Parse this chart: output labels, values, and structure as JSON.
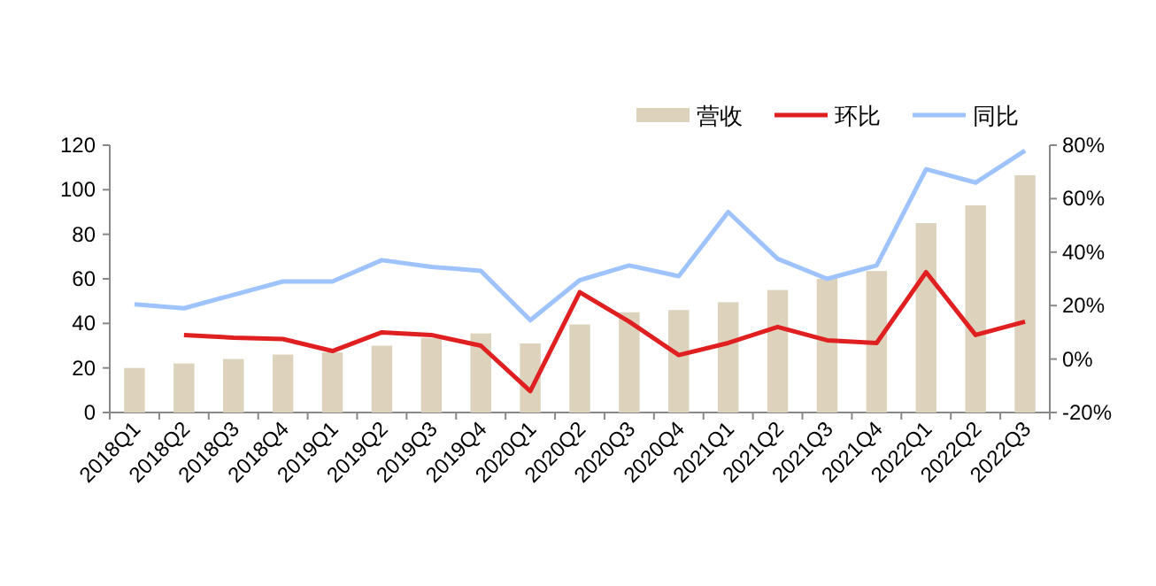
{
  "chart_data": {
    "type": "bar",
    "categories": [
      "2018Q1",
      "2018Q2",
      "2018Q3",
      "2018Q4",
      "2019Q1",
      "2019Q2",
      "2019Q3",
      "2019Q4",
      "2020Q1",
      "2020Q2",
      "2020Q3",
      "2020Q4",
      "2021Q1",
      "2021Q2",
      "2021Q3",
      "2021Q4",
      "2022Q1",
      "2022Q2",
      "2022Q3"
    ],
    "series": [
      {
        "name": "营收",
        "color": "#ddd3bd",
        "values": [
          20,
          22,
          24,
          26,
          27,
          30,
          33.5,
          35.5,
          31,
          39.5,
          45,
          46,
          49.5,
          55,
          60,
          63.5,
          85,
          93,
          106.5
        ]
      },
      {
        "name": "环比",
        "type": "line",
        "axis": "y2",
        "color": "#e02020",
        "values": [
          null,
          9,
          8,
          7.5,
          3,
          10,
          9,
          5,
          -12,
          25,
          14,
          1.5,
          6,
          12,
          7,
          6,
          32.5,
          9,
          14
        ]
      },
      {
        "name": "同比",
        "type": "line",
        "axis": "y2",
        "color": "#9ec3ff",
        "values": [
          20.5,
          19,
          24,
          29,
          29,
          37,
          34.5,
          33,
          14.5,
          29.5,
          35,
          31,
          55,
          37.5,
          30,
          35,
          71,
          66,
          78
        ]
      }
    ],
    "ylim": [
      0,
      120
    ],
    "yticks": [
      0,
      20,
      40,
      60,
      80,
      100,
      120
    ],
    "y2lim": [
      -20,
      80
    ],
    "y2ticks": [
      {
        "value": -20,
        "label": "-20%"
      },
      {
        "value": 0,
        "label": "0%"
      },
      {
        "value": 20,
        "label": "20%"
      },
      {
        "value": 40,
        "label": "40%"
      },
      {
        "value": 60,
        "label": "60%"
      },
      {
        "value": 80,
        "label": "80%"
      }
    ],
    "legend": "top",
    "grid": false
  }
}
